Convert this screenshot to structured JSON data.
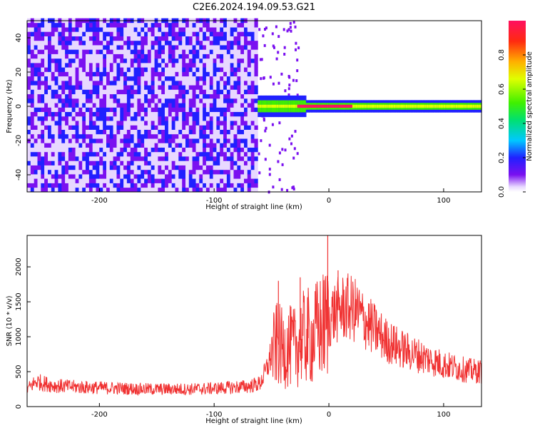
{
  "title": "C2E6.2024.194.09.53.G21",
  "chart_data": [
    {
      "type": "heatmap",
      "title": "",
      "xlabel": "Height of straight line (km)",
      "ylabel": "Frequency (Hz)",
      "xlim": [
        -263,
        133
      ],
      "ylim": [
        -50,
        50
      ],
      "xticks": [
        -200,
        -100,
        0,
        100
      ],
      "yticks": [
        -40,
        -20,
        0,
        20,
        40
      ],
      "colorbar": {
        "label": "Normalized spectral amplitude",
        "range": [
          0,
          1
        ],
        "ticks": [
          0,
          0.2,
          0.4,
          0.6,
          0.8
        ]
      },
      "features": {
        "noise_region_x": [
          -263,
          -62
        ],
        "signal_line_freq_hz": 0,
        "signal_onset_km": -62,
        "peak_amplitude": 1.0
      }
    },
    {
      "type": "line",
      "title": "",
      "xlabel": "Height of straight line (km)",
      "ylabel": "SNR (10 * v/v)",
      "xlim": [
        -263,
        133
      ],
      "ylim": [
        0,
        2450
      ],
      "xticks": [
        -200,
        -100,
        0,
        100
      ],
      "yticks": [
        0,
        500,
        1000,
        1500,
        2000
      ],
      "color": "#f03232",
      "series": [
        {
          "x": [
            -263,
            -255,
            -240,
            -220,
            -200,
            -180,
            -160,
            -140,
            -120,
            -100,
            -90,
            -80,
            -70,
            -60,
            -55,
            -50,
            -45,
            -40,
            -35,
            -30,
            -25,
            -20,
            -15,
            -10,
            -5,
            0,
            5,
            10,
            15,
            20,
            25,
            30,
            40,
            50,
            60,
            70,
            80,
            90,
            100,
            110,
            120,
            133
          ],
          "y": [
            250,
            360,
            300,
            280,
            270,
            260,
            250,
            250,
            250,
            260,
            270,
            280,
            290,
            330,
            500,
            750,
            900,
            820,
            860,
            840,
            950,
            1000,
            950,
            1100,
            1150,
            1250,
            1350,
            1400,
            1420,
            1400,
            1350,
            1250,
            1100,
            950,
            850,
            780,
            720,
            660,
            600,
            560,
            520,
            500
          ]
        }
      ],
      "spikes": [
        {
          "x": -44,
          "y": 1800
        },
        {
          "x": -25,
          "y": 1850
        },
        {
          "x": -18,
          "y": 1700
        },
        {
          "x": -1,
          "y": 2450
        },
        {
          "x": 8,
          "y": 1950
        }
      ]
    }
  ]
}
